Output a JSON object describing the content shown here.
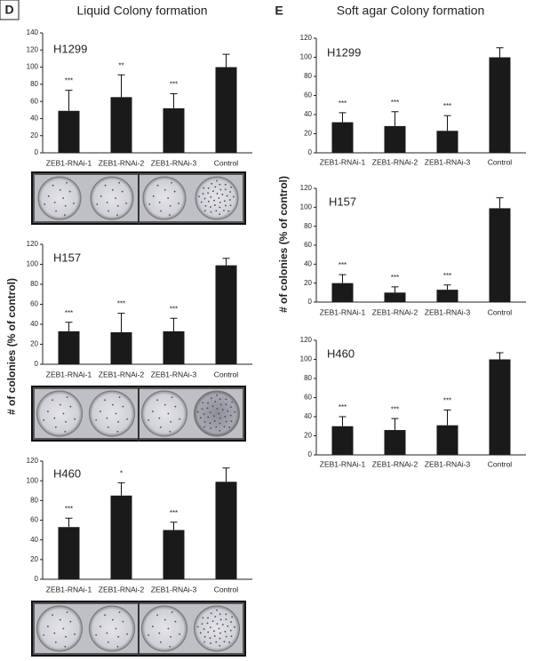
{
  "panels": [
    {
      "label": "D",
      "title": "Liquid Colony formation",
      "ylabel": "# of colonies (% of control)"
    },
    {
      "label": "E",
      "title": "Soft agar Colony formation",
      "ylabel": "# of colonies (% of control)"
    }
  ],
  "chart_data": [
    {
      "type": "bar",
      "title": "H1299",
      "categories": [
        "ZEB1-RNAi-1",
        "ZEB1-RNAi-2",
        "ZEB1-RNAi-3",
        "Control"
      ],
      "values": [
        49,
        65,
        52,
        100
      ],
      "errors": [
        24,
        26,
        17,
        15
      ],
      "annotations": [
        "***",
        "**",
        "***",
        null
      ],
      "color": "#1a1a1a",
      "ylim": [
        0,
        140
      ],
      "yticks": [
        0,
        20,
        40,
        60,
        80,
        100,
        120,
        140
      ]
    },
    {
      "type": "bar",
      "title": "H157",
      "categories": [
        "ZEB1-RNAi-1",
        "ZEB1-RNAi-2",
        "ZEB1-RNAi-3",
        "Control"
      ],
      "values": [
        33,
        32,
        33,
        99
      ],
      "errors": [
        9,
        19,
        13,
        7
      ],
      "annotations": [
        "***",
        "***",
        "***",
        null
      ],
      "color": "#1a1a1a",
      "ylim": [
        0,
        120
      ],
      "yticks": [
        0,
        20,
        40,
        60,
        80,
        100,
        120
      ]
    },
    {
      "type": "bar",
      "title": "H460",
      "categories": [
        "ZEB1-RNAi-1",
        "ZEB1-RNAi-2",
        "ZEB1-RNAi-3",
        "Control"
      ],
      "values": [
        53,
        85,
        50,
        99
      ],
      "errors": [
        9,
        13,
        8,
        14
      ],
      "annotations": [
        "***",
        "*",
        "***",
        null
      ],
      "color": "#1a1a1a",
      "ylim": [
        0,
        120
      ],
      "yticks": [
        0,
        20,
        40,
        60,
        80,
        100,
        120
      ]
    },
    {
      "type": "bar",
      "title": "H1299",
      "categories": [
        "ZEB1-RNAi-1",
        "ZEB1-RNAi-2",
        "ZEB1-RNAi-3",
        "Control"
      ],
      "values": [
        32,
        28,
        23,
        100
      ],
      "errors": [
        10,
        15,
        16,
        10
      ],
      "annotations": [
        "***",
        "***",
        "***",
        null
      ],
      "color": "#1a1a1a",
      "ylim": [
        0,
        120
      ],
      "yticks": [
        0,
        20,
        40,
        60,
        80,
        100,
        120
      ]
    },
    {
      "type": "bar",
      "title": "H157",
      "categories": [
        "ZEB1-RNAi-1",
        "ZEB1-RNAi-2",
        "ZEB1-RNAi-3",
        "Control"
      ],
      "values": [
        20,
        10,
        13,
        99
      ],
      "errors": [
        9,
        6,
        5,
        11
      ],
      "annotations": [
        "***",
        "***",
        "***",
        null
      ],
      "color": "#1a1a1a",
      "ylim": [
        0,
        120
      ],
      "yticks": [
        0,
        20,
        40,
        60,
        80,
        100,
        120
      ]
    },
    {
      "type": "bar",
      "title": "H460",
      "categories": [
        "ZEB1-RNAi-1",
        "ZEB1-RNAi-2",
        "ZEB1-RNAi-3",
        "Control"
      ],
      "values": [
        30,
        26,
        31,
        100
      ],
      "errors": [
        10,
        12,
        16,
        7
      ],
      "annotations": [
        "***",
        "***",
        "***",
        null
      ],
      "color": "#1a1a1a",
      "ylim": [
        0,
        120
      ],
      "yticks": [
        0,
        20,
        40,
        60,
        80,
        100,
        120
      ]
    }
  ]
}
